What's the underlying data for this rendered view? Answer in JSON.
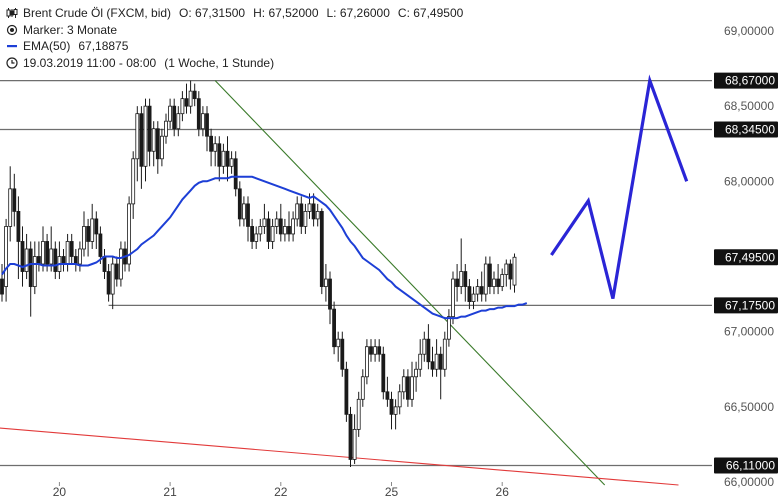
{
  "legend": {
    "instrument": "Brent Crude Öl (FXCM, bid)",
    "open": "O: 67,31500",
    "high": "H: 67,52000",
    "low": "L: 67,26000",
    "close": "C: 67,49500",
    "marker_label": "Marker: 3 Monate",
    "ema_label": "EMA(50)",
    "ema_value": "67,18875",
    "range_label": "19.03.2019 11:00 - 08:00",
    "interval_label": "(1 Woche, 1 Stunde)"
  },
  "colors": {
    "candle": "#1a1a1a",
    "ema": "#1d3fd6",
    "forecast": "#2a25d6",
    "trend_down": "#3a7a2a",
    "trend_red": "#e23a3a",
    "hline": "#6e6e6e",
    "tag_bg": "#111111",
    "grid_text": "#555555"
  },
  "chart_data": {
    "type": "candlestick",
    "ylim": [
      66.0,
      69.0
    ],
    "y_ticks": [
      "69,00000",
      "68,50000",
      "68,00000",
      "67,00000",
      "66,50000",
      "66,00000"
    ],
    "y_tick_values": [
      69.0,
      68.5,
      68.0,
      67.0,
      66.5,
      66.0
    ],
    "x_ticks": [
      {
        "label": "20",
        "index": 14
      },
      {
        "label": "21",
        "index": 41
      },
      {
        "label": "22",
        "index": 68
      },
      {
        "label": "25",
        "index": 95
      },
      {
        "label": "26",
        "index": 122
      }
    ],
    "horizontal_levels": [
      {
        "value": 68.67,
        "label": "68,67000",
        "from_index": 0
      },
      {
        "value": 68.345,
        "label": "68,34500",
        "from_index": 0
      },
      {
        "value": 67.495,
        "label": "67,49500",
        "from_index": null
      },
      {
        "value": 67.175,
        "label": "67,17500",
        "from_index": 26
      },
      {
        "value": 66.11,
        "label": "66,11000",
        "from_index": 0
      }
    ],
    "trendlines": [
      {
        "name": "",
        "color_key": "trend_down",
        "from": [
          52,
          68.67
        ],
        "to": [
          147,
          65.98
        ]
      },
      {
        "name": "",
        "color_key": "trend_red",
        "from": [
          -1,
          66.36
        ],
        "to": [
          165,
          65.98
        ]
      }
    ],
    "forecast_path": [
      [
        134,
        67.51
      ],
      [
        143,
        67.87
      ],
      [
        149,
        67.22
      ],
      [
        158,
        68.67
      ],
      [
        167,
        68.0
      ]
    ],
    "ema50": [
      67.38,
      67.42,
      67.45,
      67.45,
      67.44,
      67.43,
      67.44,
      67.45,
      67.45,
      67.45,
      67.44,
      67.44,
      67.44,
      67.44,
      67.45,
      67.45,
      67.45,
      67.45,
      67.45,
      67.44,
      67.44,
      67.44,
      67.45,
      67.46,
      67.48,
      67.5,
      67.5,
      67.5,
      67.49,
      67.49,
      67.5,
      67.51,
      67.53,
      67.55,
      67.58,
      67.6,
      67.62,
      67.64,
      67.67,
      67.7,
      67.73,
      67.76,
      67.8,
      67.84,
      67.88,
      67.91,
      67.94,
      67.97,
      67.99,
      68.0,
      68.0,
      68.01,
      68.02,
      68.02,
      68.02,
      68.02,
      68.03,
      68.03,
      68.03,
      68.03,
      68.03,
      68.03,
      68.02,
      68.01,
      68.0,
      67.99,
      67.98,
      67.97,
      67.96,
      67.95,
      67.94,
      67.93,
      67.92,
      67.91,
      67.9,
      67.89,
      67.9,
      67.88,
      67.86,
      67.84,
      67.81,
      67.77,
      67.73,
      67.69,
      67.64,
      67.6,
      67.57,
      67.53,
      67.49,
      67.47,
      67.45,
      67.43,
      67.41,
      67.38,
      67.35,
      67.33,
      67.3,
      67.28,
      67.26,
      67.24,
      67.22,
      67.2,
      67.18,
      67.16,
      67.14,
      67.12,
      67.11,
      67.1,
      67.09,
      67.09,
      67.09,
      67.09,
      67.1,
      67.1,
      67.11,
      67.12,
      67.13,
      67.14,
      67.14,
      67.15,
      67.15,
      67.16,
      67.16,
      67.17,
      67.17,
      67.17,
      67.18,
      67.18,
      67.19
    ],
    "candles": [
      [
        67.35,
        67.25,
        67.45,
        67.2
      ],
      [
        67.3,
        67.7,
        67.75,
        67.2
      ],
      [
        67.7,
        67.95,
        68.1,
        67.6
      ],
      [
        67.95,
        67.8,
        68.05,
        67.7
      ],
      [
        67.8,
        67.6,
        67.9,
        67.35
      ],
      [
        67.6,
        67.4,
        67.7,
        67.3
      ],
      [
        67.4,
        67.55,
        67.65,
        67.35
      ],
      [
        67.55,
        67.3,
        67.6,
        67.1
      ],
      [
        67.3,
        67.5,
        67.6,
        67.25
      ],
      [
        67.5,
        67.45,
        67.6,
        67.4
      ],
      [
        67.45,
        67.6,
        67.7,
        67.4
      ],
      [
        67.6,
        67.45,
        67.65,
        67.4
      ],
      [
        67.45,
        67.55,
        67.7,
        67.4
      ],
      [
        67.55,
        67.4,
        67.6,
        67.35
      ],
      [
        67.4,
        67.5,
        67.6,
        67.35
      ],
      [
        67.5,
        67.45,
        67.55,
        67.4
      ],
      [
        67.45,
        67.6,
        67.65,
        67.4
      ],
      [
        67.6,
        67.5,
        67.65,
        67.45
      ],
      [
        67.5,
        67.45,
        67.55,
        67.4
      ],
      [
        67.45,
        67.55,
        67.6,
        67.4
      ],
      [
        67.55,
        67.7,
        67.8,
        67.5
      ],
      [
        67.7,
        67.6,
        67.75,
        67.5
      ],
      [
        67.6,
        67.75,
        67.85,
        67.55
      ],
      [
        67.75,
        67.65,
        67.8,
        67.55
      ],
      [
        67.65,
        67.5,
        67.7,
        67.45
      ],
      [
        67.5,
        67.4,
        67.55,
        67.35
      ],
      [
        67.4,
        67.25,
        67.45,
        67.2
      ],
      [
        67.25,
        67.45,
        67.5,
        67.15
      ],
      [
        67.45,
        67.35,
        67.5,
        67.3
      ],
      [
        67.35,
        67.55,
        67.6,
        67.3
      ],
      [
        67.55,
        67.45,
        67.6,
        67.4
      ],
      [
        67.45,
        67.85,
        67.9,
        67.4
      ],
      [
        67.85,
        68.15,
        68.2,
        67.75
      ],
      [
        68.15,
        68.45,
        68.5,
        68.0
      ],
      [
        68.45,
        68.1,
        68.5,
        67.95
      ],
      [
        68.1,
        68.5,
        68.55,
        68.0
      ],
      [
        68.5,
        68.2,
        68.55,
        68.1
      ],
      [
        68.2,
        68.35,
        68.4,
        68.1
      ],
      [
        68.35,
        68.15,
        68.4,
        68.05
      ],
      [
        68.15,
        68.3,
        68.35,
        68.1
      ],
      [
        68.3,
        68.4,
        68.45,
        68.25
      ],
      [
        68.4,
        68.5,
        68.55,
        68.35
      ],
      [
        68.5,
        68.35,
        68.55,
        68.3
      ],
      [
        68.35,
        68.45,
        68.5,
        68.3
      ],
      [
        68.45,
        68.55,
        68.6,
        68.4
      ],
      [
        68.55,
        68.5,
        68.65,
        68.45
      ],
      [
        68.5,
        68.6,
        68.67,
        68.45
      ],
      [
        68.6,
        68.55,
        68.65,
        68.5
      ],
      [
        68.55,
        68.35,
        68.6,
        68.3
      ],
      [
        68.35,
        68.45,
        68.5,
        68.3
      ],
      [
        68.45,
        68.3,
        68.5,
        68.2
      ],
      [
        68.3,
        68.2,
        68.35,
        68.1
      ],
      [
        68.2,
        68.25,
        68.3,
        68.1
      ],
      [
        68.25,
        68.1,
        68.3,
        68.0
      ],
      [
        68.1,
        68.2,
        68.25,
        68.05
      ],
      [
        68.2,
        68.1,
        68.3,
        68.0
      ],
      [
        68.1,
        68.15,
        68.2,
        68.05
      ],
      [
        68.15,
        67.95,
        68.2,
        67.9
      ],
      [
        67.95,
        67.75,
        68.0,
        67.7
      ],
      [
        67.75,
        67.85,
        67.9,
        67.7
      ],
      [
        67.85,
        67.7,
        67.9,
        67.6
      ],
      [
        67.7,
        67.6,
        67.75,
        67.55
      ],
      [
        67.6,
        67.65,
        67.7,
        67.55
      ],
      [
        67.65,
        67.7,
        67.75,
        67.6
      ],
      [
        67.7,
        67.75,
        67.85,
        67.65
      ],
      [
        67.75,
        67.6,
        67.8,
        67.55
      ],
      [
        67.6,
        67.7,
        67.75,
        67.55
      ],
      [
        67.7,
        67.75,
        67.8,
        67.65
      ],
      [
        67.75,
        67.65,
        67.85,
        67.6
      ],
      [
        67.65,
        67.7,
        67.75,
        67.6
      ],
      [
        67.7,
        67.65,
        67.8,
        67.6
      ],
      [
        67.65,
        67.75,
        67.8,
        67.6
      ],
      [
        67.75,
        67.85,
        67.9,
        67.7
      ],
      [
        67.85,
        67.7,
        67.9,
        67.65
      ],
      [
        67.7,
        67.8,
        67.85,
        67.65
      ],
      [
        67.8,
        67.85,
        67.92,
        67.75
      ],
      [
        67.85,
        67.75,
        67.92,
        67.7
      ],
      [
        67.75,
        67.8,
        67.85,
        67.7
      ],
      [
        67.8,
        67.3,
        67.82,
        67.25
      ],
      [
        67.3,
        67.35,
        67.45,
        67.2
      ],
      [
        67.35,
        67.15,
        67.4,
        67.05
      ],
      [
        67.15,
        66.9,
        67.2,
        66.85
      ],
      [
        66.9,
        66.95,
        67.0,
        66.8
      ],
      [
        66.95,
        66.75,
        67.0,
        66.7
      ],
      [
        66.75,
        66.45,
        66.8,
        66.4
      ],
      [
        66.45,
        66.15,
        66.5,
        66.1
      ],
      [
        66.15,
        66.35,
        66.45,
        66.12
      ],
      [
        66.35,
        66.55,
        66.6,
        66.3
      ],
      [
        66.55,
        66.7,
        66.75,
        66.5
      ],
      [
        66.7,
        66.9,
        66.95,
        66.65
      ],
      [
        66.9,
        66.85,
        66.95,
        66.8
      ],
      [
        66.85,
        66.9,
        66.95,
        66.8
      ],
      [
        66.9,
        66.85,
        66.95,
        66.8
      ],
      [
        66.85,
        66.6,
        66.9,
        66.55
      ],
      [
        66.6,
        66.55,
        66.7,
        66.5
      ],
      [
        66.55,
        66.45,
        66.6,
        66.35
      ],
      [
        66.45,
        66.5,
        66.55,
        66.35
      ],
      [
        66.5,
        66.6,
        66.65,
        66.45
      ],
      [
        66.6,
        66.7,
        66.75,
        66.55
      ],
      [
        66.7,
        66.55,
        66.75,
        66.5
      ],
      [
        66.55,
        66.7,
        66.8,
        66.5
      ],
      [
        66.7,
        66.75,
        66.8,
        66.6
      ],
      [
        66.75,
        66.85,
        66.95,
        66.7
      ],
      [
        66.85,
        66.95,
        67.0,
        66.8
      ],
      [
        66.95,
        66.8,
        67.05,
        66.75
      ],
      [
        66.8,
        66.75,
        66.9,
        66.7
      ],
      [
        66.75,
        66.85,
        66.95,
        66.7
      ],
      [
        66.85,
        66.75,
        66.9,
        66.55
      ],
      [
        66.75,
        66.95,
        67.0,
        66.7
      ],
      [
        66.95,
        67.1,
        67.15,
        66.9
      ],
      [
        67.1,
        67.35,
        67.4,
        67.05
      ],
      [
        67.35,
        67.3,
        67.45,
        67.2
      ],
      [
        67.3,
        67.4,
        67.62,
        67.25
      ],
      [
        67.4,
        67.3,
        67.45,
        67.2
      ],
      [
        67.3,
        67.2,
        67.35,
        67.15
      ],
      [
        67.2,
        67.25,
        67.3,
        67.15
      ],
      [
        67.25,
        67.3,
        67.35,
        67.2
      ],
      [
        67.3,
        67.25,
        67.4,
        67.2
      ],
      [
        67.25,
        67.45,
        67.5,
        67.2
      ],
      [
        67.45,
        67.3,
        67.5,
        67.25
      ],
      [
        67.3,
        67.35,
        67.4,
        67.25
      ],
      [
        67.35,
        67.3,
        67.45,
        67.25
      ],
      [
        67.3,
        67.38,
        67.42,
        67.27
      ],
      [
        67.38,
        67.45,
        67.48,
        67.3
      ],
      [
        67.45,
        67.35,
        67.48,
        67.28
      ],
      [
        67.31,
        67.495,
        67.52,
        67.26
      ]
    ]
  }
}
